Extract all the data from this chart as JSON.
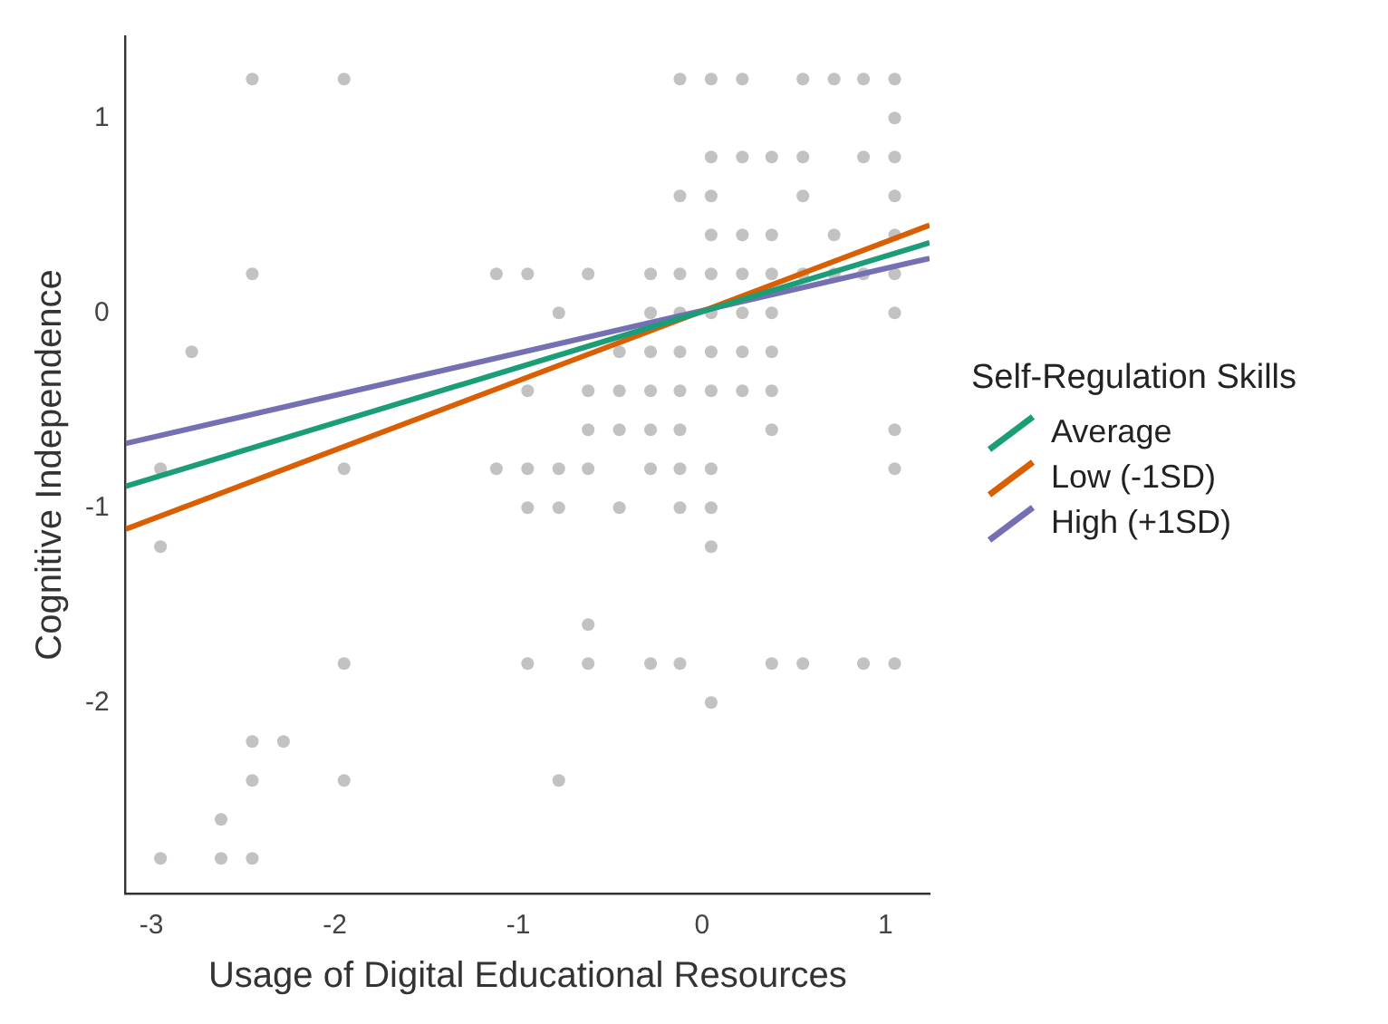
{
  "chart_data": {
    "type": "scatter",
    "xlabel": "Usage of Digital Educational Resources",
    "ylabel": "Cognitive Independence",
    "legend_title": "Self-Regulation Skills",
    "legend": "right",
    "grid": false,
    "xlim": [
      -3.14,
      1.24
    ],
    "ylim": [
      -2.98,
      1.42
    ],
    "xticks": [
      -3,
      -2,
      -1,
      0,
      1
    ],
    "yticks": [
      -2,
      -1,
      0,
      1
    ],
    "series": [
      {
        "marker": "circle",
        "color": "#999999",
        "x": [
          -2.45,
          -1.95,
          -0.12,
          0.05,
          0.22,
          0.55,
          0.72,
          0.88,
          1.05,
          1.05,
          0.05,
          0.22,
          0.38,
          0.55,
          0.88,
          1.05,
          -0.12,
          0.05,
          0.55,
          1.05,
          0.05,
          0.22,
          0.38,
          0.72,
          1.05,
          -2.45,
          -1.12,
          -0.95,
          -0.62,
          -0.28,
          -0.12,
          0.05,
          0.22,
          0.38,
          0.55,
          0.72,
          0.88,
          1.05,
          -0.78,
          -0.28,
          -0.12,
          0.05,
          0.22,
          0.38,
          1.05,
          -2.78,
          -0.45,
          -0.28,
          -0.12,
          0.05,
          0.22,
          0.38,
          -0.95,
          -0.62,
          -0.45,
          -0.28,
          -0.12,
          0.05,
          0.22,
          0.38,
          -0.62,
          -0.45,
          -0.28,
          -0.12,
          0.38,
          1.05,
          -2.95,
          -1.95,
          -1.12,
          -0.95,
          -0.78,
          -0.62,
          -0.28,
          -0.12,
          0.05,
          1.05,
          -0.95,
          -0.78,
          -0.45,
          -0.12,
          0.05,
          -2.95,
          0.05,
          -0.62,
          -1.95,
          -0.95,
          -0.62,
          -0.28,
          -0.12,
          0.38,
          0.55,
          0.88,
          1.05,
          0.05,
          -2.45,
          -2.28,
          -2.45,
          -1.95,
          -0.78,
          -2.62,
          -2.95,
          -2.62,
          -2.45
        ],
        "values": [
          1.2,
          1.2,
          1.2,
          1.2,
          1.2,
          1.2,
          1.2,
          1.2,
          1.2,
          1.0,
          0.8,
          0.8,
          0.8,
          0.8,
          0.8,
          0.8,
          0.6,
          0.6,
          0.6,
          0.6,
          0.4,
          0.4,
          0.4,
          0.4,
          0.4,
          0.2,
          0.2,
          0.2,
          0.2,
          0.2,
          0.2,
          0.2,
          0.2,
          0.2,
          0.2,
          0.2,
          0.2,
          0.2,
          0,
          0,
          0,
          0,
          0,
          0,
          0,
          -0.2,
          -0.2,
          -0.2,
          -0.2,
          -0.2,
          -0.2,
          -0.2,
          -0.4,
          -0.4,
          -0.4,
          -0.4,
          -0.4,
          -0.4,
          -0.4,
          -0.4,
          -0.6,
          -0.6,
          -0.6,
          -0.6,
          -0.6,
          -0.6,
          -0.8,
          -0.8,
          -0.8,
          -0.8,
          -0.8,
          -0.8,
          -0.8,
          -0.8,
          -0.8,
          -0.8,
          -1.0,
          -1.0,
          -1.0,
          -1.0,
          -1.0,
          -1.2,
          -1.2,
          -1.6,
          -1.8,
          -1.8,
          -1.8,
          -1.8,
          -1.8,
          -1.8,
          -1.8,
          -1.8,
          -1.8,
          -2.0,
          -2.2,
          -2.2,
          -2.4,
          -2.4,
          -2.4,
          -2.6,
          -2.8,
          -2.8,
          -2.8
        ]
      },
      {
        "type": "line",
        "marker": "none",
        "name": "Average",
        "color": "#1b9e77",
        "x": [
          -3.14,
          1.24
        ],
        "values": [
          -0.89,
          0.36
        ]
      },
      {
        "type": "line",
        "marker": "none",
        "name": "Low (-1SD)",
        "color": "#d95f02",
        "x": [
          -3.14,
          1.24
        ],
        "values": [
          -1.11,
          0.45
        ]
      },
      {
        "type": "line",
        "marker": "none",
        "name": "High (+1SD)",
        "color": "#7570b3",
        "x": [
          -3.14,
          1.24
        ],
        "values": [
          -0.67,
          0.28
        ]
      }
    ]
  }
}
